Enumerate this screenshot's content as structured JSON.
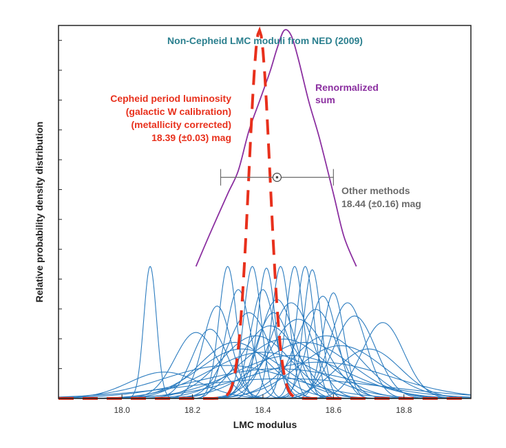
{
  "chart_data": {
    "type": "line",
    "title": "Non-Cepheid LMC moduli from NED (2009)",
    "xlabel": "LMC modulus",
    "ylabel": "Relative probability density distribution",
    "xlim": [
      17.82,
      18.99
    ],
    "ylim": [
      0,
      11.3
    ],
    "x_ticks": [
      18.0,
      18.2,
      18.4,
      18.6,
      18.8
    ],
    "x_tick_labels": [
      "18.0",
      "18.2",
      "18.4",
      "18.6",
      "18.8"
    ],
    "grid": false,
    "legend": "none",
    "colors": {
      "ned": "#2a7bbf",
      "sum": "#8b2fa0",
      "cepheid": "#e8301c",
      "other": "#6b6b6b",
      "title": "#2a7f8e"
    },
    "renormalized_sum": {
      "label": [
        "Renormalized",
        "sum"
      ],
      "x": [
        18.21,
        18.25,
        18.3,
        18.33,
        18.36,
        18.39,
        18.42,
        18.44,
        18.46,
        18.48,
        18.5,
        18.53,
        18.56,
        18.6,
        18.63,
        18.665
      ],
      "y": [
        4.0,
        5.0,
        6.2,
        6.9,
        8.1,
        9.0,
        9.9,
        10.6,
        11.15,
        11.0,
        10.3,
        9.0,
        7.9,
        6.2,
        4.9,
        4.0
      ]
    },
    "cepheid": {
      "label": [
        "Cepheid period luminosity",
        "(galactic W calibration)",
        "(metallicity corrected)",
        "18.39 (±0.03) mag"
      ],
      "mean": 18.39,
      "sigma": 0.03,
      "peak": 11.15,
      "line_style": "dashed"
    },
    "other_methods": {
      "label": [
        "Other methods",
        "18.44 (±0.16) mag"
      ],
      "value": 18.44,
      "error": 0.16,
      "y": 6.7
    },
    "ned_moduli": {
      "description": "Individual NED distance moduli shown as gaussian curves",
      "series": [
        {
          "mean": 18.08,
          "sigma": 0.018,
          "peak": 4.0
        },
        {
          "mean": 18.3,
          "sigma": 0.025,
          "peak": 4.0
        },
        {
          "mean": 18.37,
          "sigma": 0.025,
          "peak": 4.0
        },
        {
          "mean": 18.41,
          "sigma": 0.025,
          "peak": 3.95
        },
        {
          "mean": 18.45,
          "sigma": 0.025,
          "peak": 4.0
        },
        {
          "mean": 18.49,
          "sigma": 0.025,
          "peak": 4.0
        },
        {
          "mean": 18.52,
          "sigma": 0.025,
          "peak": 4.0
        },
        {
          "mean": 18.54,
          "sigma": 0.025,
          "peak": 3.9
        },
        {
          "mean": 18.33,
          "sigma": 0.035,
          "peak": 3.3
        },
        {
          "mean": 18.4,
          "sigma": 0.035,
          "peak": 3.3
        },
        {
          "mean": 18.57,
          "sigma": 0.04,
          "peak": 3.1
        },
        {
          "mean": 18.64,
          "sigma": 0.05,
          "peak": 2.9
        },
        {
          "mean": 18.27,
          "sigma": 0.04,
          "peak": 2.8
        },
        {
          "mean": 18.44,
          "sigma": 0.05,
          "peak": 3.0
        },
        {
          "mean": 18.48,
          "sigma": 0.06,
          "peak": 2.9
        },
        {
          "mean": 18.66,
          "sigma": 0.06,
          "peak": 2.5
        },
        {
          "mean": 18.74,
          "sigma": 0.06,
          "peak": 2.3
        },
        {
          "mean": 18.21,
          "sigma": 0.06,
          "peak": 2.0
        },
        {
          "mean": 18.36,
          "sigma": 0.06,
          "peak": 2.6
        },
        {
          "mean": 18.25,
          "sigma": 0.05,
          "peak": 2.1
        },
        {
          "mean": 18.55,
          "sigma": 0.06,
          "peak": 2.7
        },
        {
          "mean": 18.5,
          "sigma": 0.08,
          "peak": 2.4
        },
        {
          "mean": 18.42,
          "sigma": 0.08,
          "peak": 2.2
        },
        {
          "mean": 18.38,
          "sigma": 0.1,
          "peak": 1.9
        },
        {
          "mean": 18.32,
          "sigma": 0.1,
          "peak": 1.7
        },
        {
          "mean": 18.46,
          "sigma": 0.12,
          "peak": 1.8
        },
        {
          "mean": 18.58,
          "sigma": 0.1,
          "peak": 1.9
        },
        {
          "mean": 18.62,
          "sigma": 0.12,
          "peak": 1.6
        },
        {
          "mean": 18.52,
          "sigma": 0.13,
          "peak": 1.7
        },
        {
          "mean": 18.4,
          "sigma": 0.15,
          "peak": 1.4
        },
        {
          "mean": 18.34,
          "sigma": 0.12,
          "peak": 1.5
        },
        {
          "mean": 18.48,
          "sigma": 0.16,
          "peak": 1.3
        },
        {
          "mean": 18.43,
          "sigma": 0.05,
          "peak": 2.6
        },
        {
          "mean": 18.6,
          "sigma": 0.03,
          "peak": 3.2
        },
        {
          "mean": 18.56,
          "sigma": 0.2,
          "peak": 1.1
        },
        {
          "mean": 18.3,
          "sigma": 0.18,
          "peak": 1.0
        },
        {
          "mean": 18.44,
          "sigma": 0.22,
          "peak": 0.9
        },
        {
          "mean": 18.46,
          "sigma": 0.28,
          "peak": 0.6
        },
        {
          "mean": 18.12,
          "sigma": 0.1,
          "peak": 0.8
        },
        {
          "mean": 18.7,
          "sigma": 0.09,
          "peak": 1.5
        }
      ]
    }
  }
}
